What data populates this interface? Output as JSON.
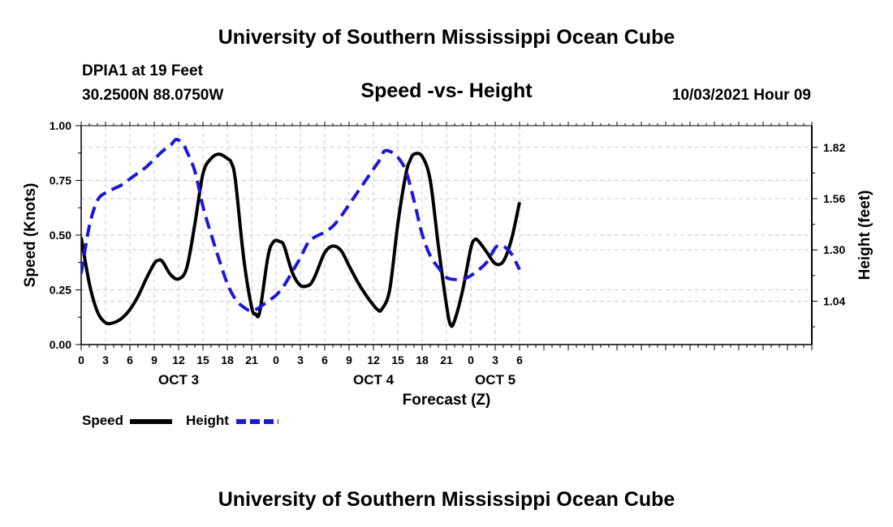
{
  "header": {
    "title": "University of Southern Mississippi Ocean Cube",
    "station": "DPIA1 at 19 Feet",
    "coords": "30.2500N  88.0750W",
    "datetime": "10/03/2021 Hour 09"
  },
  "footer": {
    "title": "University of Southern Mississippi Ocean Cube"
  },
  "legend": {
    "speed_label": "Speed",
    "height_label": "Height"
  },
  "colors": {
    "speed": "#000000",
    "height": "#1a1ad6",
    "grid": "#c8c8c8"
  },
  "chart_data": {
    "type": "line",
    "title": "Speed -vs- Height",
    "xlabel": "Forecast (Z)",
    "ylabel": "Speed (Knots)",
    "y2label": "Height (feet)",
    "xlim": [
      0,
      90
    ],
    "ylim": [
      0,
      1
    ],
    "y2lim": [
      0.82,
      1.93
    ],
    "x_ticks": [
      0,
      3,
      6,
      9,
      12,
      15,
      18,
      21,
      24,
      27,
      30,
      33,
      36,
      39,
      42,
      45,
      48,
      51,
      54
    ],
    "x_tick_labels": [
      "0",
      "3",
      "6",
      "9",
      "12",
      "15",
      "18",
      "21",
      "0",
      "3",
      "6",
      "9",
      "12",
      "15",
      "18",
      "21",
      "0",
      "3",
      "6"
    ],
    "y_ticks": [
      0,
      0.25,
      0.5,
      0.75,
      1.0
    ],
    "y_tick_labels": [
      "0.00",
      "0.25",
      "0.50",
      "0.75",
      "1.00"
    ],
    "y2_ticks": [
      1.04,
      1.3,
      1.56,
      1.82
    ],
    "y2_tick_labels": [
      "1.04",
      "1.30",
      "1.56",
      "1.82"
    ],
    "day_labels": [
      {
        "x": 12,
        "label": "OCT 3"
      },
      {
        "x": 36,
        "label": "OCT 4"
      },
      {
        "x": 51,
        "label": "OCT 5"
      }
    ],
    "series": [
      {
        "name": "Speed",
        "axis": "left",
        "x": [
          0,
          1,
          2,
          3,
          4,
          5,
          6,
          7,
          8,
          9,
          9.5,
          10,
          11,
          12,
          13,
          14,
          15,
          16,
          17,
          18,
          18.5,
          19,
          20,
          21,
          21.5,
          22,
          23,
          23.7,
          24.5,
          25,
          26,
          27,
          28,
          28.5,
          29,
          30,
          31,
          32,
          33,
          34,
          35,
          36,
          36.5,
          37,
          38,
          39,
          40,
          40.5,
          41,
          42,
          43,
          44,
          45,
          45.5,
          46,
          47,
          48,
          48.5,
          49,
          50,
          51,
          52,
          53,
          54
        ],
        "y": [
          0.49,
          0.28,
          0.15,
          0.1,
          0.1,
          0.12,
          0.16,
          0.22,
          0.3,
          0.37,
          0.385,
          0.38,
          0.32,
          0.3,
          0.35,
          0.55,
          0.78,
          0.85,
          0.87,
          0.85,
          0.83,
          0.75,
          0.4,
          0.17,
          0.14,
          0.15,
          0.4,
          0.47,
          0.47,
          0.45,
          0.33,
          0.27,
          0.27,
          0.29,
          0.33,
          0.42,
          0.45,
          0.43,
          0.36,
          0.29,
          0.23,
          0.18,
          0.16,
          0.16,
          0.25,
          0.55,
          0.78,
          0.84,
          0.87,
          0.86,
          0.75,
          0.45,
          0.18,
          0.09,
          0.11,
          0.25,
          0.44,
          0.48,
          0.47,
          0.42,
          0.37,
          0.38,
          0.48,
          0.65
        ]
      },
      {
        "name": "Height",
        "axis": "right",
        "x": [
          0,
          1,
          2,
          3,
          4,
          5,
          6,
          7,
          8,
          9,
          10,
          11,
          11.7,
          12.5,
          13,
          14,
          15,
          16,
          17,
          18,
          19,
          20,
          21,
          22,
          23,
          24,
          25,
          26,
          27,
          28,
          29,
          30,
          31,
          32,
          33,
          34,
          35,
          36,
          37,
          37.3,
          38,
          39,
          40,
          41,
          42,
          43,
          44,
          45,
          46,
          47,
          48,
          49,
          50,
          51,
          51.5,
          52,
          53,
          54
        ],
        "y": [
          1.18,
          1.42,
          1.55,
          1.59,
          1.61,
          1.63,
          1.66,
          1.69,
          1.72,
          1.76,
          1.8,
          1.83,
          1.86,
          1.84,
          1.8,
          1.7,
          1.52,
          1.38,
          1.25,
          1.13,
          1.05,
          1.01,
          0.99,
          1.01,
          1.04,
          1.07,
          1.12,
          1.19,
          1.26,
          1.34,
          1.37,
          1.39,
          1.42,
          1.47,
          1.53,
          1.59,
          1.65,
          1.71,
          1.77,
          1.8,
          1.8,
          1.77,
          1.7,
          1.55,
          1.38,
          1.27,
          1.21,
          1.16,
          1.15,
          1.15,
          1.17,
          1.2,
          1.24,
          1.31,
          1.32,
          1.32,
          1.28,
          1.2
        ]
      }
    ]
  }
}
